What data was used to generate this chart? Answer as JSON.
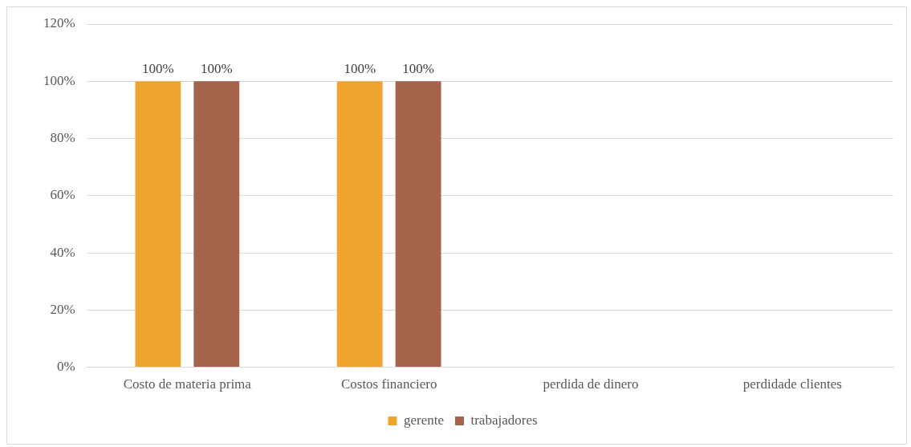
{
  "chart_data": {
    "type": "bar",
    "categories": [
      "Costo de materia prima",
      "Costos financiero",
      "perdida de dinero",
      "perdidade clientes"
    ],
    "series": [
      {
        "name": "gerente",
        "color": "#f0a430",
        "values": [
          100,
          100,
          null,
          null
        ],
        "value_labels": [
          "100%",
          "100%",
          null,
          null
        ]
      },
      {
        "name": "trabajadores",
        "color": "#a5644a",
        "values": [
          100,
          100,
          null,
          null
        ],
        "value_labels": [
          "100%",
          "100%",
          null,
          null
        ]
      }
    ],
    "ylim": [
      0,
      120
    ],
    "yticks": [
      {
        "value": 0,
        "label": "0%"
      },
      {
        "value": 20,
        "label": "20%"
      },
      {
        "value": 40,
        "label": "40%"
      },
      {
        "value": 60,
        "label": "60%"
      },
      {
        "value": 80,
        "label": "80%"
      },
      {
        "value": 100,
        "label": "100%"
      },
      {
        "value": 120,
        "label": "120%"
      }
    ],
    "grid": "y",
    "legend": "bottom"
  }
}
